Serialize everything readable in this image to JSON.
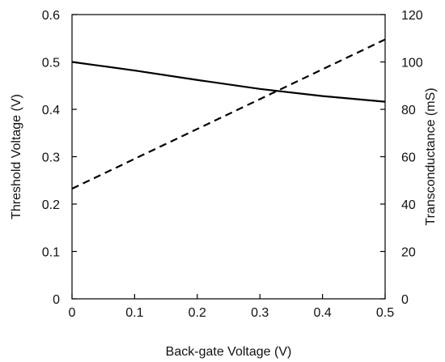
{
  "chart_data": {
    "type": "line",
    "title": "",
    "xlabel": "Back-gate Voltage (V)",
    "ylabel_left": "Threshold Voltage (V)",
    "ylabel_right": "Transconductance  (mS)",
    "xlim": [
      0,
      0.5
    ],
    "ylim_left": [
      0,
      0.6
    ],
    "ylim_right": [
      0,
      120
    ],
    "x_ticks": [
      "0",
      "0.1",
      "0.2",
      "0.3",
      "0.4",
      "0.5"
    ],
    "y_left_ticks": [
      "0",
      "0.1",
      "0.2",
      "0.3",
      "0.4",
      "0.5",
      "0.6"
    ],
    "y_right_ticks": [
      "0",
      "20",
      "40",
      "60",
      "80",
      "100",
      "120"
    ],
    "grid": false,
    "legend": "none",
    "series": [
      {
        "axis": "left",
        "style": "solid",
        "color": "#000000",
        "x": [
          0,
          0.1,
          0.2,
          0.3,
          0.4,
          0.5
        ],
        "y": [
          0.5,
          0.482,
          0.462,
          0.443,
          0.428,
          0.416
        ]
      },
      {
        "axis": "right",
        "style": "dashed",
        "color": "#000000",
        "x": [
          0,
          0.5
        ],
        "y": [
          46.5,
          109.5
        ]
      }
    ]
  }
}
